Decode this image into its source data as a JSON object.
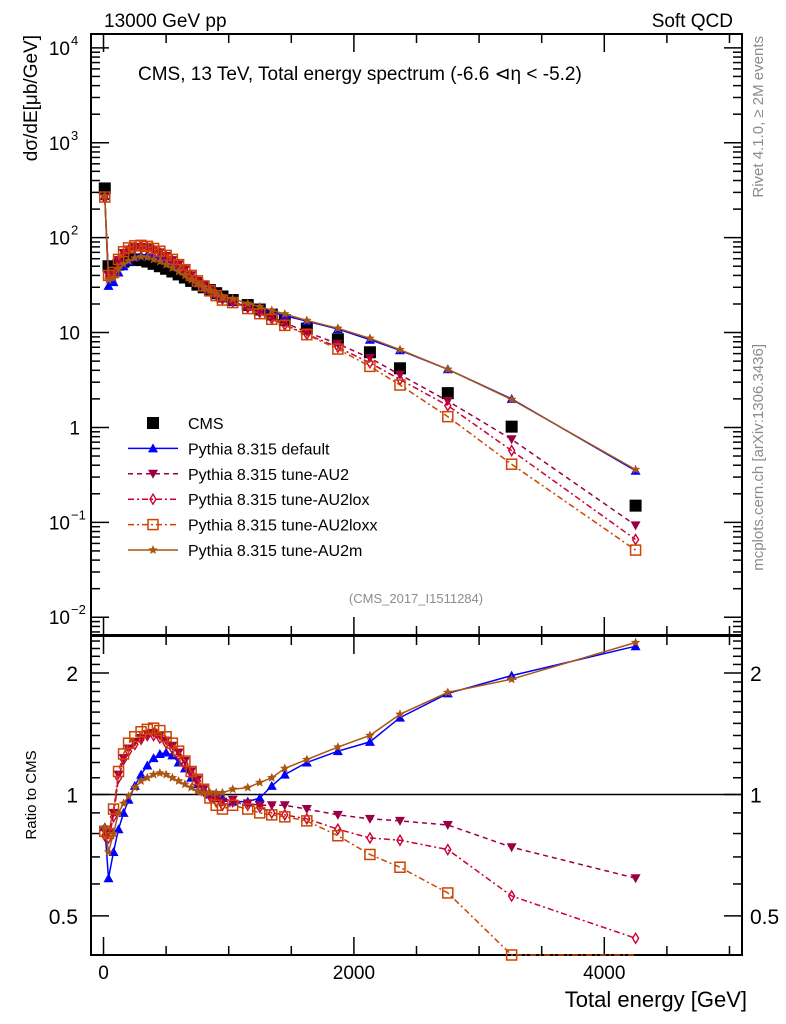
{
  "chart_data": [
    {
      "type": "scatter",
      "panel": "main",
      "title": "CMS, 13 TeV, Total energy spectrum (-6.6 ⊲η < -5.2)",
      "top_left_label": "13000 GeV pp",
      "top_right_label": "Soft QCD",
      "side_label_top": "Rivet 4.1.0, ≥ 2M events",
      "side_label_bottom": "mcplots.cern.ch [arXiv:1306.3436]",
      "analysis_id": "(CMS_2017_I1511284)",
      "xlabel": "Total energy [GeV]",
      "ylabel": "dσ/dE[μb/GeV]",
      "yscale": "log",
      "xlim": [
        -100,
        5100
      ],
      "ylim": [
        0.0065,
        14000
      ],
      "ytick_labels": [
        {
          "value": 10000,
          "base": "10",
          "exp": "4"
        },
        {
          "value": 1000,
          "base": "10",
          "exp": "3"
        },
        {
          "value": 100,
          "base": "10",
          "exp": "2"
        },
        {
          "value": 10,
          "base": "10",
          "exp": ""
        },
        {
          "value": 1,
          "base": "1",
          "exp": ""
        },
        {
          "value": 0.1,
          "base": "10",
          "exp": "−1"
        },
        {
          "value": 0.01,
          "base": "10",
          "exp": "−2"
        }
      ],
      "legend_position": "lower-left",
      "x": [
        10,
        40,
        80,
        120,
        160,
        200,
        250,
        300,
        350,
        400,
        450,
        500,
        550,
        600,
        650,
        700,
        750,
        800,
        850,
        900,
        950,
        1032,
        1152,
        1248,
        1344,
        1448,
        1624,
        1872,
        2128,
        2368,
        2750,
        3260,
        4250
      ],
      "series": [
        {
          "name": "CMS",
          "color": "#000000",
          "marker": "square-filled",
          "line": "none",
          "values": [
            330,
            50,
            47,
            52,
            56,
            58,
            59,
            58,
            56,
            53,
            50,
            47,
            44,
            41,
            38,
            35,
            32,
            30,
            28,
            26,
            24,
            22,
            19.5,
            17.5,
            15.5,
            13.5,
            11,
            8.5,
            6.2,
            4.2,
            2.3,
            1.02,
            0.15
          ]
        },
        {
          "name": "Pythia 8.315 default",
          "color": "#0000ff",
          "marker": "triangle-up-filled",
          "line": "solid",
          "values": [
            274,
            31,
            34,
            43,
            50,
            56,
            62,
            65,
            66,
            65,
            63,
            60,
            55,
            49,
            44,
            38.5,
            34,
            31,
            28,
            25.5,
            23.5,
            21.1,
            18.7,
            17.2,
            16.3,
            15.1,
            13.2,
            10.9,
            8.4,
            6.5,
            4.1,
            2.0,
            0.35
          ]
        },
        {
          "name": "Pythia 8.315 tune-AU2",
          "color": "#990044",
          "marker": "triangle-down-filled",
          "line": "dashed",
          "values": [
            266,
            40,
            42,
            58,
            69,
            75,
            79,
            80,
            79,
            75,
            70,
            64,
            58,
            52,
            46,
            40,
            35,
            31,
            28,
            25.5,
            23,
            21.3,
            18.5,
            16.5,
            14.6,
            12.7,
            10.1,
            7.6,
            5.4,
            3.6,
            1.9,
            0.75,
            0.093
          ]
        },
        {
          "name": "Pythia 8.315 tune-AU2lox",
          "color": "#cc0033",
          "marker": "diamond-open",
          "line": "dashdot",
          "values": [
            262,
            39,
            41,
            57,
            68,
            74,
            78,
            79,
            78,
            74,
            69,
            63,
            57,
            51,
            45,
            39.5,
            34.5,
            30.6,
            27.6,
            25,
            22.6,
            21.1,
            18.3,
            16.3,
            14,
            12,
            9.6,
            7.0,
            4.8,
            3.2,
            1.7,
            0.57,
            0.066
          ]
        },
        {
          "name": "Pythia 8.315 tune-AU2loxx",
          "color": "#cc4400",
          "marker": "square-open",
          "line": "dashdot",
          "values": [
            268,
            40,
            43,
            59,
            71,
            78,
            82,
            83,
            81,
            77,
            72,
            65,
            59,
            52,
            46,
            40,
            35,
            31,
            27.5,
            24.5,
            22,
            20.7,
            17.9,
            15.8,
            13.8,
            11.9,
            9.5,
            6.7,
            4.4,
            2.8,
            1.3,
            0.41,
            0.051
          ]
        },
        {
          "name": "Pythia 8.315 tune-AU2m",
          "color": "#aa5511",
          "marker": "star-filled",
          "line": "solid",
          "values": [
            274,
            36,
            38,
            47,
            53,
            57,
            61,
            63,
            62,
            59,
            56,
            52,
            48,
            44,
            40,
            36,
            32.5,
            30,
            27.8,
            25.5,
            23.5,
            22.7,
            20.3,
            18.7,
            17.1,
            15.7,
            13.4,
            11.1,
            8.7,
            6.6,
            4.1,
            1.97,
            0.36
          ]
        }
      ]
    },
    {
      "type": "line",
      "panel": "ratio",
      "ylabel": "Ratio to CMS",
      "xlabel": "Total energy [GeV]",
      "yscale": "log",
      "xlim": [
        -100,
        5100
      ],
      "ylim": [
        0.4,
        2.47
      ],
      "ytick_labels": [
        "2",
        "1",
        "0.5"
      ],
      "xtick_labels": [
        "0",
        "2000",
        "4000"
      ],
      "reference_line": 1,
      "x": [
        10,
        40,
        80,
        120,
        160,
        200,
        250,
        300,
        350,
        400,
        450,
        500,
        550,
        600,
        650,
        700,
        750,
        800,
        850,
        900,
        950,
        1032,
        1152,
        1248,
        1344,
        1448,
        1624,
        1872,
        2128,
        2368,
        2750,
        3260,
        4250
      ],
      "series": [
        {
          "name": "Pythia 8.315 default",
          "color": "#0000ff",
          "values": [
            0.83,
            0.62,
            0.72,
            0.82,
            0.9,
            0.97,
            1.05,
            1.12,
            1.18,
            1.23,
            1.26,
            1.27,
            1.25,
            1.2,
            1.16,
            1.1,
            1.06,
            1.03,
            1.0,
            0.98,
            0.98,
            0.96,
            0.96,
            0.98,
            1.05,
            1.12,
            1.2,
            1.28,
            1.35,
            1.55,
            1.78,
            1.97,
            2.33
          ]
        },
        {
          "name": "Pythia 8.315 tune-AU2",
          "color": "#990044",
          "values": [
            0.81,
            0.8,
            0.9,
            1.12,
            1.23,
            1.3,
            1.35,
            1.38,
            1.41,
            1.42,
            1.4,
            1.36,
            1.32,
            1.27,
            1.21,
            1.14,
            1.09,
            1.03,
            1.0,
            0.98,
            0.96,
            0.97,
            0.95,
            0.94,
            0.94,
            0.94,
            0.92,
            0.89,
            0.87,
            0.86,
            0.84,
            0.74,
            0.62
          ]
        },
        {
          "name": "Pythia 8.315 tune-AU2lox",
          "color": "#cc0033",
          "values": [
            0.79,
            0.78,
            0.88,
            1.1,
            1.22,
            1.28,
            1.33,
            1.37,
            1.4,
            1.4,
            1.38,
            1.34,
            1.3,
            1.25,
            1.19,
            1.13,
            1.08,
            1.02,
            0.99,
            0.96,
            0.94,
            0.96,
            0.94,
            0.93,
            0.9,
            0.89,
            0.87,
            0.82,
            0.78,
            0.77,
            0.73,
            0.56,
            0.44
          ]
        },
        {
          "name": "Pythia 8.315 tune-AU2loxx",
          "color": "#cc4400",
          "values": [
            0.81,
            0.8,
            0.92,
            1.14,
            1.26,
            1.34,
            1.39,
            1.43,
            1.45,
            1.46,
            1.44,
            1.39,
            1.34,
            1.28,
            1.21,
            1.14,
            1.09,
            1.03,
            0.98,
            0.94,
            0.92,
            0.94,
            0.92,
            0.9,
            0.89,
            0.88,
            0.86,
            0.79,
            0.71,
            0.66,
            0.57,
            0.4,
            0.34
          ]
        },
        {
          "name": "Pythia 8.315 tune-AU2m",
          "color": "#aa5511",
          "values": [
            0.83,
            0.72,
            0.8,
            0.9,
            0.95,
            0.99,
            1.04,
            1.08,
            1.1,
            1.12,
            1.13,
            1.12,
            1.1,
            1.08,
            1.06,
            1.04,
            1.02,
            1.01,
            1.01,
            1.01,
            1.01,
            1.03,
            1.04,
            1.07,
            1.1,
            1.16,
            1.22,
            1.31,
            1.4,
            1.58,
            1.79,
            1.93,
            2.38
          ]
        }
      ]
    }
  ]
}
